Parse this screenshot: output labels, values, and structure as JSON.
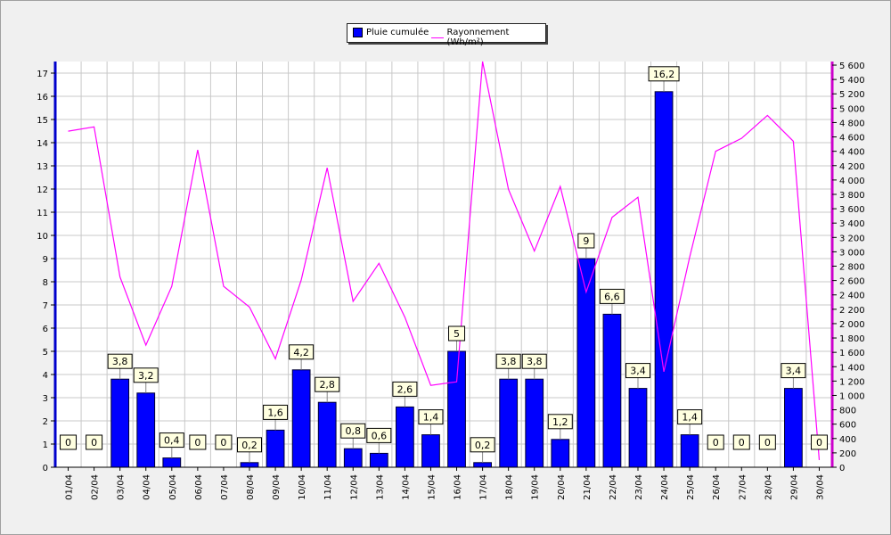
{
  "chart_data": {
    "type": "bar",
    "categories": [
      "01/04",
      "02/04",
      "03/04",
      "04/04",
      "05/04",
      "06/04",
      "07/04",
      "08/04",
      "09/04",
      "10/04",
      "11/04",
      "12/04",
      "13/04",
      "14/04",
      "15/04",
      "16/04",
      "17/04",
      "18/04",
      "19/04",
      "20/04",
      "21/04",
      "22/04",
      "23/04",
      "24/04",
      "25/04",
      "26/04",
      "27/04",
      "28/04",
      "29/04",
      "30/04"
    ],
    "series": [
      {
        "name": "Pluie cumulée",
        "type": "bar",
        "axis": "left",
        "color": "#0000ff",
        "values": [
          0,
          0,
          3.8,
          3.2,
          0.4,
          0,
          0,
          0.2,
          1.6,
          4.2,
          2.8,
          0.8,
          0.6,
          2.6,
          1.4,
          5,
          0.2,
          3.8,
          3.8,
          1.2,
          9,
          6.6,
          3.4,
          16.2,
          1.4,
          0,
          0,
          0,
          3.4,
          0
        ],
        "labels": [
          "0",
          "0",
          "3,8",
          "3,2",
          "0,4",
          "0",
          "0",
          "0,2",
          "1,6",
          "4,2",
          "2,8",
          "0,8",
          "0,6",
          "2,6",
          "1,4",
          "5",
          "0,2",
          "3,8",
          "3,8",
          "1,2",
          "9",
          "6,6",
          "3,4",
          "16,2",
          "1,4",
          "0",
          "0",
          "0",
          "3,4",
          "0"
        ]
      },
      {
        "name": "Rayonnement (Wh/m²)",
        "type": "line",
        "axis": "right",
        "color": "#ff00ff",
        "values": [
          4680,
          4740,
          2650,
          1700,
          2520,
          4420,
          2520,
          2230,
          1510,
          2610,
          4170,
          2310,
          2840,
          2090,
          1140,
          1190,
          5650,
          3870,
          3010,
          3910,
          2440,
          3480,
          3760,
          1330,
          2930,
          4400,
          4580,
          4900,
          4540,
          100
        ]
      }
    ],
    "yleft": {
      "min": 0,
      "max": 17.5,
      "ticks": [
        0,
        1,
        2,
        3,
        4,
        5,
        6,
        7,
        8,
        9,
        10,
        11,
        12,
        13,
        14,
        15,
        16,
        17
      ]
    },
    "yright": {
      "min": 0,
      "max": 5650,
      "ticks": [
        0,
        200,
        400,
        600,
        800,
        1000,
        1200,
        1400,
        1600,
        1800,
        2000,
        2200,
        2400,
        2600,
        2800,
        3000,
        3200,
        3400,
        3600,
        3800,
        4000,
        4200,
        4400,
        4600,
        4800,
        5000,
        5200,
        5400,
        5600
      ],
      "tick_labels": [
        "0",
        "200",
        "400",
        "600",
        "800",
        "1 000",
        "1 200",
        "1 400",
        "1 600",
        "1 800",
        "2 000",
        "2 200",
        "2 400",
        "2 600",
        "2 800",
        "3 000",
        "3 200",
        "3 400",
        "3 600",
        "3 800",
        "4 000",
        "4 200",
        "4 400",
        "4 600",
        "4 800",
        "5 000",
        "5 200",
        "5 400",
        "5 600"
      ]
    },
    "grid": true,
    "legend_position": "top-center",
    "title": "",
    "xlabel": "",
    "ylabel": ""
  }
}
